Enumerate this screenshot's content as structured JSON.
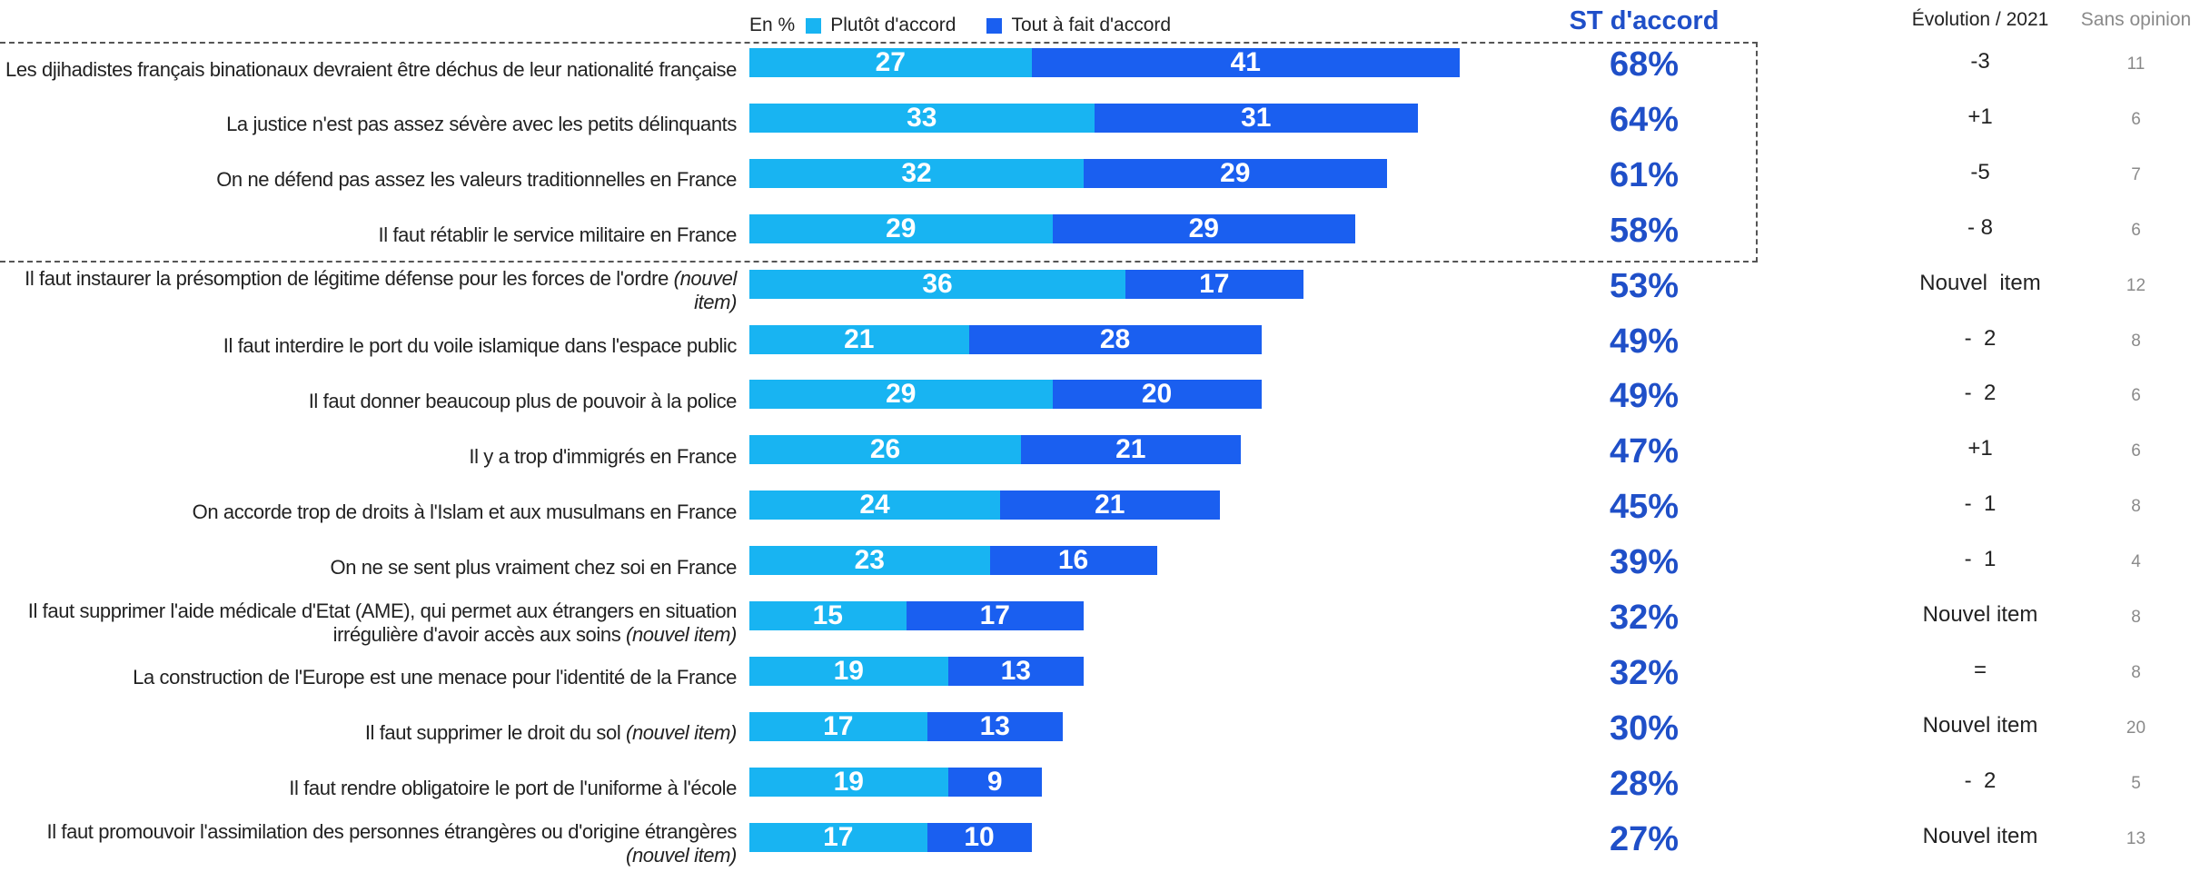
{
  "legend": {
    "unit_label": "En %",
    "plutot_label": "Plutôt d'accord",
    "tout_label": "Tout à fait d'accord",
    "st_label": "ST d'accord",
    "evolution_label": "Évolution  / 2021",
    "sans_label": "Sans opinion"
  },
  "colors": {
    "plutot": "#18b4f2",
    "tout": "#1a5ff0",
    "st_text": "#1f4fc8",
    "sans_text": "#8a8a8a"
  },
  "chart_data": {
    "type": "bar",
    "orientation": "horizontal",
    "stacked": true,
    "xlim": [
      0,
      100
    ],
    "categories": [
      "Les djihadistes français binationaux devraient être déchus de leur nationalité française",
      "La justice n'est pas assez sévère avec les petits délinquants",
      "On ne défend pas assez les valeurs traditionnelles en France",
      "Il faut rétablir le service militaire en France",
      "Il faut instaurer la présomption de légitime défense pour les forces de l'ordre (nouvel item)",
      "Il faut interdire le port du voile islamique dans l'espace public",
      "Il faut donner beaucoup plus de pouvoir à la police",
      "Il y a trop d'immigrés en France",
      "On accorde trop de droits à l'Islam et aux musulmans en France",
      "On ne se sent plus vraiment chez soi en France",
      "Il faut supprimer l'aide médicale d'Etat (AME), qui permet aux étrangers en situation irrégulière d'avoir accès aux soins (nouvel item)",
      "La construction de l'Europe est une menace pour l'identité de la France",
      "Il faut supprimer le droit du sol (nouvel item)",
      "Il faut rendre obligatoire le port de l'uniforme à l'école",
      "Il faut promouvoir l'assimilation des personnes étrangères ou d'origine étrangères (nouvel item)"
    ],
    "series": [
      {
        "name": "Plutôt d'accord",
        "values": [
          27,
          33,
          32,
          29,
          36,
          21,
          29,
          26,
          24,
          23,
          15,
          19,
          17,
          19,
          17
        ]
      },
      {
        "name": "Tout à fait d'accord",
        "values": [
          41,
          31,
          29,
          29,
          17,
          28,
          20,
          21,
          21,
          16,
          17,
          13,
          13,
          9,
          10
        ]
      }
    ]
  },
  "rows": [
    {
      "label_main": "Les djihadistes français binationaux devraient être déchus de leur nationalité française",
      "label_note": "",
      "st": "68%",
      "evolution": "-3",
      "sans_opinion": "11"
    },
    {
      "label_main": "La justice n'est pas assez sévère avec les petits délinquants",
      "label_note": "",
      "st": "64%",
      "evolution": "+1",
      "sans_opinion": "6"
    },
    {
      "label_main": "On ne défend pas assez les valeurs traditionnelles en France",
      "label_note": "",
      "st": "61%",
      "evolution": "-5",
      "sans_opinion": "7"
    },
    {
      "label_main": "Il faut rétablir le service militaire en France",
      "label_note": "",
      "st": "58%",
      "evolution": "- 8",
      "sans_opinion": "6"
    },
    {
      "label_main": "Il faut instaurer la présomption de légitime défense pour les forces de l'ordre",
      "label_note": "(nouvel item)",
      "st": "53%",
      "evolution": "Nouvel  item",
      "sans_opinion": "12"
    },
    {
      "label_main": "Il faut interdire le port du voile islamique dans l'espace public",
      "label_note": "",
      "st": "49%",
      "evolution": "-  2",
      "sans_opinion": "8"
    },
    {
      "label_main": "Il faut donner beaucoup plus de pouvoir à la police",
      "label_note": "",
      "st": "49%",
      "evolution": "-  2",
      "sans_opinion": "6"
    },
    {
      "label_main": "Il y a trop d'immigrés en France",
      "label_note": "",
      "st": "47%",
      "evolution": "+1",
      "sans_opinion": "6"
    },
    {
      "label_main": "On accorde trop de droits à l'Islam et aux musulmans en France",
      "label_note": "",
      "st": "45%",
      "evolution": "-  1",
      "sans_opinion": "8"
    },
    {
      "label_main": "On ne se sent plus vraiment chez soi en France",
      "label_note": "",
      "st": "39%",
      "evolution": "-  1",
      "sans_opinion": "4"
    },
    {
      "label_main": "Il faut supprimer l'aide médicale d'Etat (AME), qui permet aux étrangers en situation irrégulière d'avoir accès aux soins",
      "label_note": "(nouvel item)",
      "st": "32%",
      "evolution": "Nouvel item",
      "sans_opinion": "8"
    },
    {
      "label_main": "La construction de l'Europe est une menace pour l'identité de la France",
      "label_note": "",
      "st": "32%",
      "evolution": "=",
      "sans_opinion": "8"
    },
    {
      "label_main": "Il faut supprimer le droit du sol",
      "label_note": "(nouvel item)",
      "st": "30%",
      "evolution": "Nouvel item",
      "sans_opinion": "20"
    },
    {
      "label_main": "Il faut rendre obligatoire le port de l'uniforme à l'école",
      "label_note": "",
      "st": "28%",
      "evolution": "-  2",
      "sans_opinion": "5"
    },
    {
      "label_main": "Il faut promouvoir l'assimilation des personnes étrangères ou d'origine étrangères",
      "label_note": "(nouvel item)",
      "st": "27%",
      "evolution": "Nouvel item",
      "sans_opinion": "13"
    }
  ]
}
